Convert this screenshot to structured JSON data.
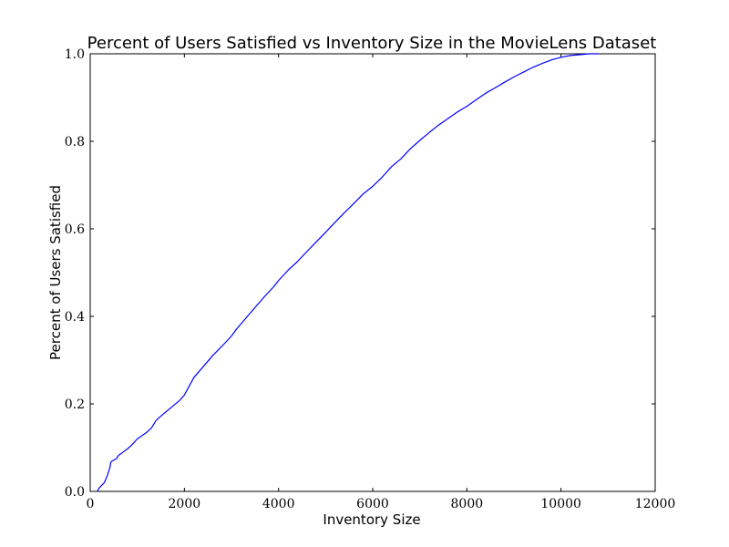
{
  "chart_data": {
    "type": "line",
    "title": "Percent of Users Satisfied vs Inventory Size in the MovieLens Dataset",
    "xlabel": "Inventory Size",
    "ylabel": "Percent of Users Satisfied",
    "xlim": [
      0,
      12000
    ],
    "ylim": [
      0.0,
      1.0
    ],
    "xticks": [
      0,
      2000,
      4000,
      6000,
      8000,
      10000,
      12000
    ],
    "xtick_labels": [
      "0",
      "2000",
      "4000",
      "6000",
      "8000",
      "10000",
      "12000"
    ],
    "yticks": [
      0.0,
      0.2,
      0.4,
      0.6,
      0.8,
      1.0
    ],
    "ytick_labels": [
      "0.0",
      "0.2",
      "0.4",
      "0.6",
      "0.8",
      "1.0"
    ],
    "grid": false,
    "legend": "none",
    "series": [
      {
        "color": "#0000ff",
        "x": [
          150,
          190,
          300,
          360,
          420,
          440,
          460,
          480,
          560,
          600,
          700,
          800,
          900,
          1000,
          1200,
          1300,
          1400,
          1500,
          1700,
          1900,
          2000,
          2100,
          2200,
          2400,
          2600,
          2800,
          3000,
          3100,
          3300,
          3500,
          3700,
          3900,
          4000,
          4200,
          4400,
          4600,
          4800,
          5000,
          5200,
          5400,
          5600,
          5800,
          6000,
          6200,
          6400,
          6600,
          6800,
          7000,
          7200,
          7400,
          7600,
          7800,
          8000,
          8200,
          8400,
          8600,
          8800,
          9000,
          9200,
          9400,
          9600,
          9800,
          10000,
          10200,
          10400,
          10600,
          10800
        ],
        "y": [
          0.0,
          0.008,
          0.02,
          0.035,
          0.055,
          0.067,
          0.069,
          0.07,
          0.075,
          0.082,
          0.09,
          0.098,
          0.108,
          0.12,
          0.135,
          0.145,
          0.162,
          0.172,
          0.19,
          0.208,
          0.22,
          0.24,
          0.26,
          0.285,
          0.31,
          0.332,
          0.355,
          0.37,
          0.395,
          0.42,
          0.445,
          0.468,
          0.482,
          0.505,
          0.525,
          0.548,
          0.57,
          0.592,
          0.615,
          0.637,
          0.658,
          0.68,
          0.697,
          0.718,
          0.742,
          0.76,
          0.783,
          0.802,
          0.82,
          0.837,
          0.852,
          0.867,
          0.88,
          0.895,
          0.91,
          0.922,
          0.935,
          0.947,
          0.958,
          0.969,
          0.978,
          0.986,
          0.992,
          0.996,
          0.998,
          1.0,
          1.0
        ]
      }
    ]
  }
}
